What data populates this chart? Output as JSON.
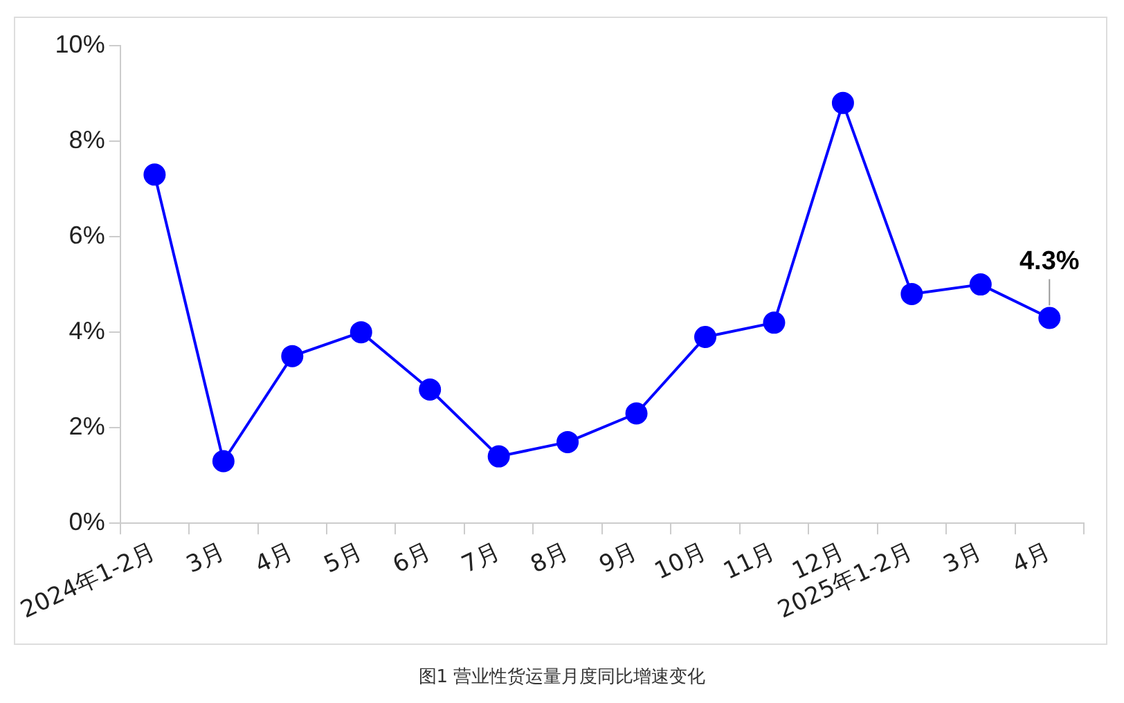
{
  "chart_data": {
    "type": "line",
    "categories": [
      "2024年1-2月",
      "3月",
      "4月",
      "5月",
      "6月",
      "7月",
      "8月",
      "9月",
      "10月",
      "11月",
      "12月",
      "2025年1-2月",
      "3月",
      "4月"
    ],
    "series": [
      {
        "color": "#0000ff",
        "values": [
          7.3,
          1.3,
          3.5,
          4.0,
          2.8,
          1.4,
          1.7,
          2.3,
          3.9,
          4.2,
          8.8,
          4.8,
          5.0,
          4.3
        ],
        "value_labels": [
          null,
          null,
          null,
          null,
          null,
          null,
          null,
          null,
          null,
          null,
          null,
          null,
          null,
          "4.3%"
        ]
      }
    ],
    "ylim": [
      0,
      10
    ],
    "yticks": [
      {
        "value": 0,
        "label": "0%"
      },
      {
        "value": 2,
        "label": "2%"
      },
      {
        "value": 4,
        "label": "4%"
      },
      {
        "value": 6,
        "label": "6%"
      },
      {
        "value": 8,
        "label": "8%"
      },
      {
        "value": 10,
        "label": "10%"
      }
    ],
    "annotations": [
      "图1 营业性货运量月度同比增速变化"
    ],
    "grid": false,
    "legend": false,
    "marker": "circle",
    "line_style": "solid"
  }
}
